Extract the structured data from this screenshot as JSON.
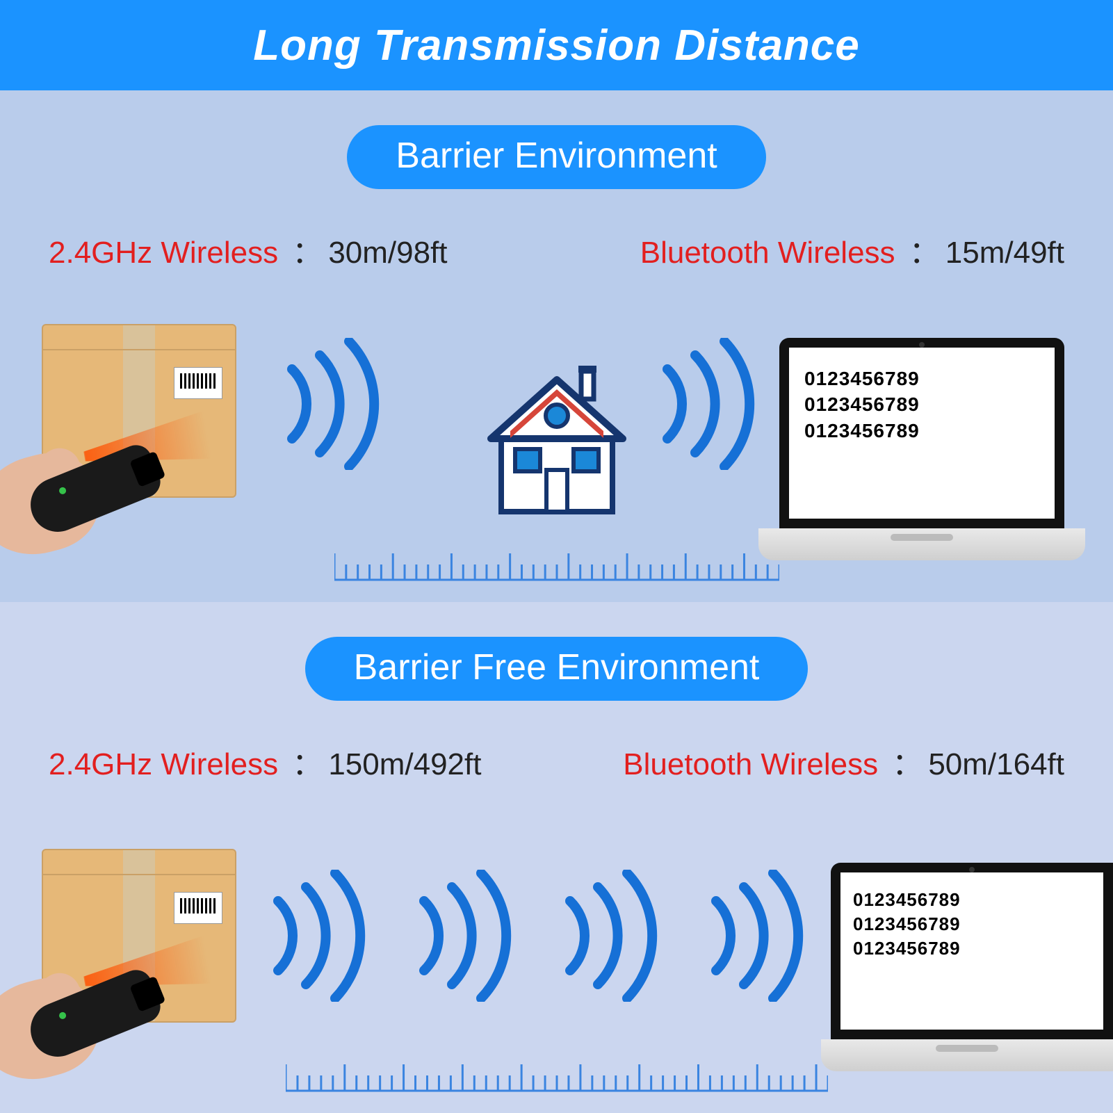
{
  "colors": {
    "header_bg": "#1b93ff",
    "section1_bg": "#b9cceb",
    "section2_bg": "#cbd6ef",
    "pill_bg": "#1b93ff",
    "spec_label": "#e21f1f",
    "signal_stroke": "#1670d6",
    "ruler_stroke": "#3a84e0",
    "house_outline": "#15356e",
    "house_roof_fill": "#d6463a",
    "house_accent": "#1b88d8",
    "house_wall": "#ffffff",
    "laptop_screen_lines": [
      "0123456789",
      "0123456789",
      "0123456789"
    ]
  },
  "header": {
    "title": "Long Transmission Distance"
  },
  "sections": {
    "barrier": {
      "pill": "Barrier Environment",
      "specs": [
        {
          "label": "2.4GHz Wireless",
          "value": "30m/98ft"
        },
        {
          "label": "Bluetooth Wireless",
          "value": "15m/49ft"
        }
      ],
      "signal_count": 2,
      "ruler_ticks": 39,
      "has_house": true,
      "laptop_variant": "full"
    },
    "barrier_free": {
      "pill": "Barrier Free Environment",
      "specs": [
        {
          "label": "2.4GHz Wireless",
          "value": "150m/492ft"
        },
        {
          "label": "Bluetooth Wireless",
          "value": "50m/164ft"
        }
      ],
      "signal_count": 4,
      "ruler_ticks": 47,
      "has_house": false,
      "laptop_variant": "small"
    }
  }
}
